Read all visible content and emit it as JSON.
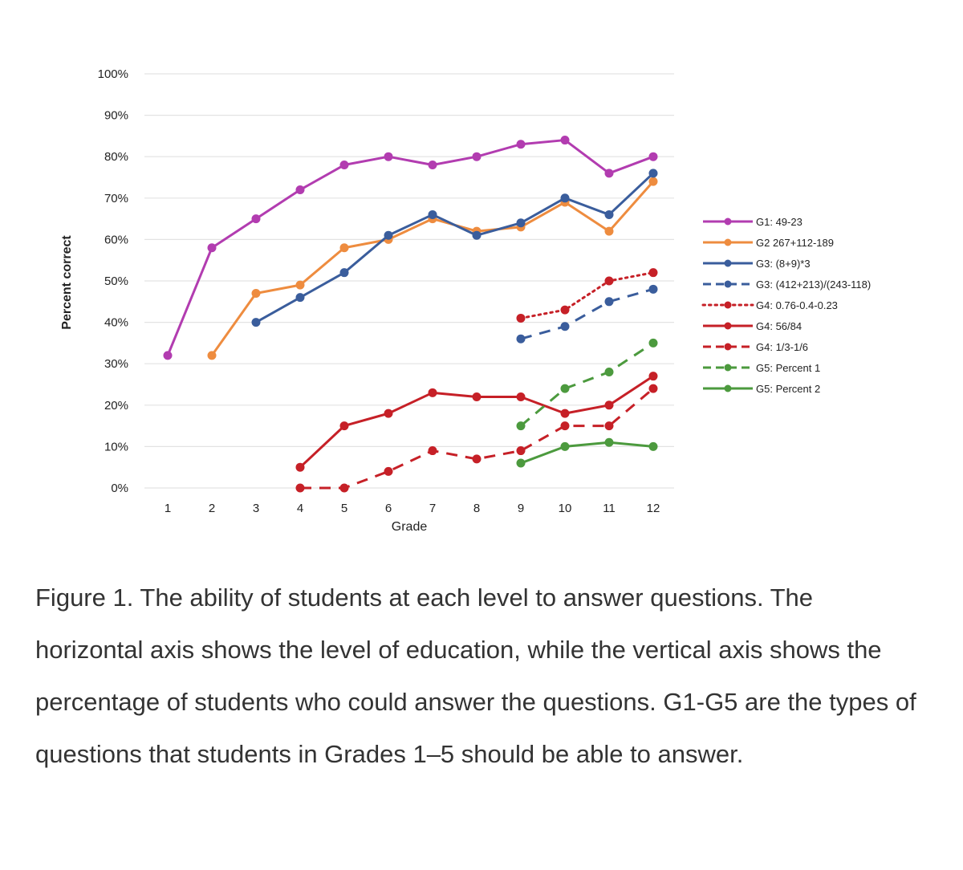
{
  "caption": "Figure 1. The ability of students at each level to answer questions. The horizontal axis shows the level of education, while the vertical axis shows the percentage of students who could answer the questions. G1-G5 are the types of questions that students in Grades 1–5 should be able to answer.",
  "chart_data": {
    "type": "line",
    "title": "",
    "xlabel": "Grade",
    "ylabel": "Percent correct",
    "x": [
      1,
      2,
      3,
      4,
      5,
      6,
      7,
      8,
      9,
      10,
      11,
      12
    ],
    "x_tick_labels": [
      "1",
      "2",
      "3",
      "4",
      "5",
      "6",
      "7",
      "8",
      "9",
      "10",
      "11",
      "12"
    ],
    "ylim": [
      0,
      100
    ],
    "y_ticks": [
      0,
      10,
      20,
      30,
      40,
      50,
      60,
      70,
      80,
      90,
      100
    ],
    "y_tick_labels": [
      "0%",
      "10%",
      "20%",
      "30%",
      "40%",
      "50%",
      "60%",
      "70%",
      "80%",
      "90%",
      "100%"
    ],
    "grid": true,
    "legend_position": "right",
    "series": [
      {
        "name": "G1: 49-23",
        "color": "#b23cb0",
        "dash": "solid",
        "values": [
          32,
          58,
          65,
          72,
          78,
          80,
          78,
          80,
          83,
          84,
          76,
          80
        ]
      },
      {
        "name": "G2 267+112-189",
        "color": "#ee8c3f",
        "dash": "solid",
        "values": [
          null,
          32,
          47,
          49,
          58,
          60,
          65,
          62,
          63,
          69,
          62,
          74
        ]
      },
      {
        "name": "G3: (8+9)*3",
        "color": "#3a5d9c",
        "dash": "solid",
        "values": [
          null,
          null,
          40,
          46,
          52,
          61,
          66,
          61,
          64,
          70,
          66,
          76
        ]
      },
      {
        "name": "G3: (412+213)/(243-118)",
        "color": "#3a5d9c",
        "dash": "dashed",
        "values": [
          null,
          null,
          null,
          null,
          null,
          null,
          null,
          null,
          36,
          39,
          45,
          48
        ]
      },
      {
        "name": "G4: 0.76-0.4-0.23",
        "color": "#c62027",
        "dash": "dotted",
        "values": [
          null,
          null,
          null,
          null,
          null,
          null,
          null,
          null,
          41,
          43,
          50,
          52
        ]
      },
      {
        "name": "G4: 56/84",
        "color": "#c62027",
        "dash": "solid",
        "values": [
          null,
          null,
          null,
          5,
          15,
          18,
          23,
          22,
          22,
          18,
          20,
          27
        ]
      },
      {
        "name": "G4: 1/3-1/6",
        "color": "#c62027",
        "dash": "dashed",
        "values": [
          null,
          null,
          null,
          0,
          0,
          4,
          9,
          7,
          9,
          15,
          15,
          24
        ]
      },
      {
        "name": "G5: Percent 1",
        "color": "#4c9a3e",
        "dash": "dashed",
        "values": [
          null,
          null,
          null,
          null,
          null,
          null,
          null,
          null,
          15,
          24,
          28,
          35
        ]
      },
      {
        "name": "G5: Percent 2",
        "color": "#4c9a3e",
        "dash": "solid",
        "values": [
          null,
          null,
          null,
          null,
          null,
          null,
          null,
          null,
          6,
          10,
          11,
          10
        ]
      }
    ]
  }
}
